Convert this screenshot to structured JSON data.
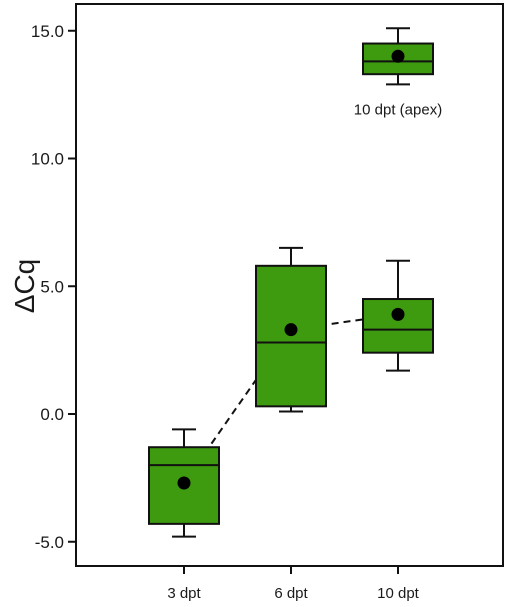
{
  "chart_data": {
    "type": "box",
    "ylabel": "ΔCq",
    "ylim": [
      -6.0,
      16.0
    ],
    "yticks": [
      {
        "value": -5.0,
        "label": "-5.0"
      },
      {
        "value": 0.0,
        "label": "0.0"
      },
      {
        "value": 5.0,
        "label": "5.0"
      },
      {
        "value": 10.0,
        "label": "10.0"
      },
      {
        "value": 15.0,
        "label": "15.0"
      }
    ],
    "categories": [
      "3 dpt",
      "6 dpt",
      "10 dpt"
    ],
    "boxes": [
      {
        "category": "3 dpt",
        "whisker_low": -4.8,
        "q1": -4.3,
        "median": -2.0,
        "q3": -1.3,
        "whisker_high": -0.6,
        "mean": -2.7
      },
      {
        "category": "6 dpt",
        "whisker_low": 0.1,
        "q1": 0.3,
        "median": 2.8,
        "q3": 5.8,
        "whisker_high": 6.5,
        "mean": 3.3
      },
      {
        "category": "10 dpt",
        "whisker_low": 1.7,
        "q1": 2.4,
        "median": 3.3,
        "q3": 4.5,
        "whisker_high": 6.0,
        "mean": 3.9
      }
    ],
    "extra_box": {
      "label": "10 dpt (apex)",
      "position": "10 dpt",
      "whisker_low": 12.9,
      "q1": 13.3,
      "median": 13.8,
      "q3": 14.5,
      "whisker_high": 15.1,
      "mean": 14.0
    },
    "mean_line": {
      "style": "dashed",
      "connects": [
        "3 dpt",
        "6 dpt",
        "10 dpt"
      ]
    },
    "colors": {
      "box_fill": "#3e9a0e",
      "stroke": "#111111",
      "mean_marker": "#000000"
    },
    "grid": false,
    "legend": "none"
  }
}
